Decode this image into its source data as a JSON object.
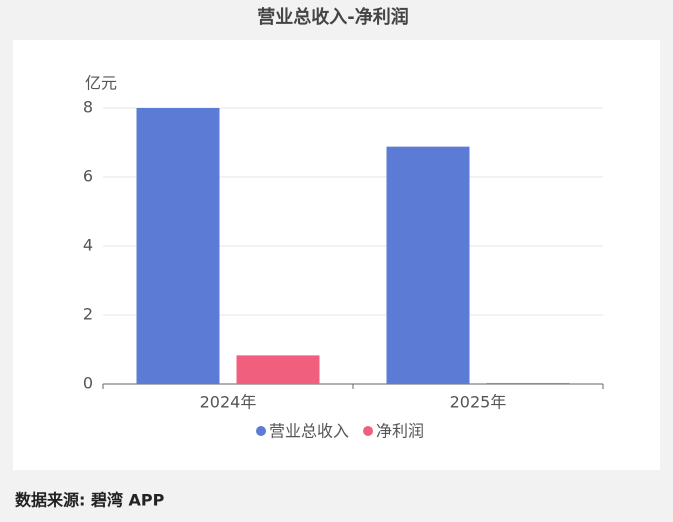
{
  "chart_data": {
    "type": "bar",
    "title": "营业总收入-净利润",
    "y_unit": "亿元",
    "categories": [
      "2024年",
      "2025年"
    ],
    "series": [
      {
        "name": "营业总收入",
        "color": "#5b7bd5",
        "values": [
          8.0,
          6.88
        ]
      },
      {
        "name": "净利润",
        "color": "#f0607e",
        "values": [
          0.83,
          0.03
        ]
      }
    ],
    "ylim": [
      0,
      8
    ],
    "yticks": [
      0,
      2,
      4,
      6,
      8
    ],
    "grid": true,
    "legend": "bottom"
  },
  "footer": "数据来源: 碧湾 APP"
}
